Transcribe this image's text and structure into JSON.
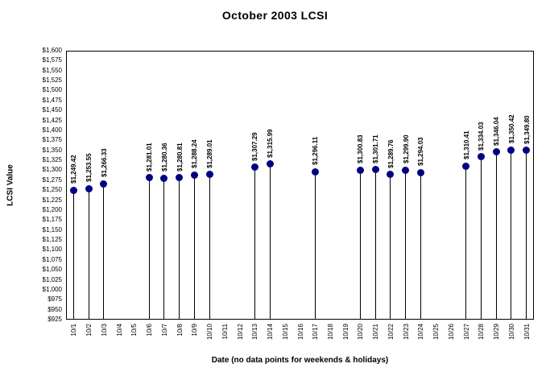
{
  "chart_data": {
    "type": "scatter",
    "variant": "stem-lollipop",
    "title": "October 2003 LCSI",
    "xlabel": "Date (no data points for weekends & holidays)",
    "ylabel": "LCSI Value",
    "ylim": [
      925,
      1600
    ],
    "y_tick_step": 25,
    "grid": false,
    "legend_position": "none",
    "marker_color": "#000080",
    "stem_color": "#000000",
    "axis_color": "#000000",
    "text_color": "#000000",
    "y_tick_labels": [
      "$1,600",
      "$1,575",
      "$1,550",
      "$1,525",
      "$1,500",
      "$1,475",
      "$1,450",
      "$1,425",
      "$1,400",
      "$1,375",
      "$1,350",
      "$1,325",
      "$1,300",
      "$1,275",
      "$1,250",
      "$1,225",
      "$1,200",
      "$1,175",
      "$1,150",
      "$1,125",
      "$1,100",
      "$1,075",
      "$1,050",
      "$1,025",
      "$1,000",
      "$975",
      "$950",
      "$925"
    ],
    "categories": [
      "10/1",
      "10/2",
      "10/3",
      "10/4",
      "10/5",
      "10/6",
      "10/7",
      "10/8",
      "10/9",
      "10/10",
      "10/11",
      "10/12",
      "10/13",
      "10/14",
      "10/15",
      "10/16",
      "10/17",
      "10/18",
      "10/19",
      "10/20",
      "10/21",
      "10/22",
      "10/23",
      "10/24",
      "10/25",
      "10/26",
      "10/27",
      "10/28",
      "10/29",
      "10/30",
      "10/31"
    ],
    "points": [
      {
        "date": "10/1",
        "value": 1249.42,
        "label": "$1,249.42"
      },
      {
        "date": "10/2",
        "value": 1253.55,
        "label": "$1,253.55"
      },
      {
        "date": "10/3",
        "value": 1266.33,
        "label": "$1,266.33"
      },
      {
        "date": "10/6",
        "value": 1281.01,
        "label": "$1,281.01"
      },
      {
        "date": "10/7",
        "value": 1280.36,
        "label": "$1,280.36"
      },
      {
        "date": "10/8",
        "value": 1280.81,
        "label": "$1,280.81"
      },
      {
        "date": "10/9",
        "value": 1288.24,
        "label": "$1,288.24"
      },
      {
        "date": "10/10",
        "value": 1289.01,
        "label": "$1,289.01"
      },
      {
        "date": "10/13",
        "value": 1307.29,
        "label": "$1,307.29"
      },
      {
        "date": "10/14",
        "value": 1315.99,
        "label": "$1,315.99"
      },
      {
        "date": "10/17",
        "value": 1296.11,
        "label": "$1,296.11"
      },
      {
        "date": "10/20",
        "value": 1300.83,
        "label": "$1,300.83"
      },
      {
        "date": "10/21",
        "value": 1301.71,
        "label": "$1,301.71"
      },
      {
        "date": "10/22",
        "value": 1289.76,
        "label": "$1,289.76"
      },
      {
        "date": "10/23",
        "value": 1299.9,
        "label": "$1,299.90"
      },
      {
        "date": "10/24",
        "value": 1294.03,
        "label": "$1,294.03"
      },
      {
        "date": "10/27",
        "value": 1310.41,
        "label": "$1,310.41"
      },
      {
        "date": "10/28",
        "value": 1334.03,
        "label": "$1,334.03"
      },
      {
        "date": "10/29",
        "value": 1346.04,
        "label": "$1,346.04"
      },
      {
        "date": "10/30",
        "value": 1350.42,
        "label": "$1,350.42"
      },
      {
        "date": "10/31",
        "value": 1349.8,
        "label": "$1,349.80"
      }
    ]
  }
}
